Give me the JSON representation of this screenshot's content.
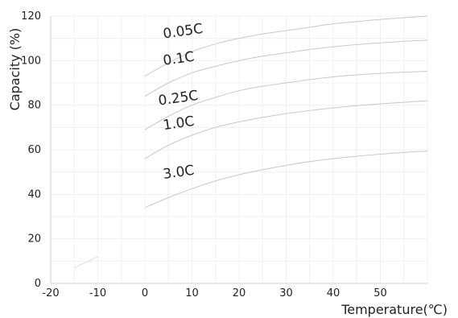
{
  "chart_data": {
    "type": "line",
    "xlabel": "Temperature(℃)",
    "ylabel": "Capacity (%)",
    "xlim": [
      -20,
      60
    ],
    "ylim": [
      0,
      120
    ],
    "x_ticks": [
      -20,
      -10,
      0,
      10,
      20,
      30,
      40,
      50
    ],
    "y_ticks": [
      0,
      20,
      40,
      60,
      80,
      100,
      120
    ],
    "grid": true,
    "line_color": "#c8c8c8",
    "series": [
      {
        "name": "0.05C",
        "label_at": [
          4,
          110
        ],
        "x": [
          0,
          5,
          10,
          15,
          20,
          25,
          30,
          35,
          40,
          45,
          50,
          55,
          60
        ],
        "y": [
          93,
          99,
          104,
          107.5,
          110,
          112,
          113.5,
          115,
          116.5,
          117.5,
          118.5,
          119.3,
          120
        ]
      },
      {
        "name": "0.1C",
        "label_at": [
          4,
          98
        ],
        "x": [
          0,
          5,
          10,
          15,
          20,
          25,
          30,
          35,
          40,
          45,
          50,
          55,
          60
        ],
        "y": [
          84,
          90,
          94.5,
          97.5,
          100,
          102,
          103.5,
          105,
          106.2,
          107.2,
          108,
          108.7,
          109.2
        ]
      },
      {
        "name": "0.25C",
        "label_at": [
          3,
          80
        ],
        "x": [
          0,
          5,
          10,
          15,
          20,
          25,
          30,
          35,
          40,
          45,
          50,
          55,
          60
        ],
        "y": [
          69,
          75,
          80,
          83.5,
          86.5,
          88.5,
          90,
          91.5,
          92.7,
          93.6,
          94.3,
          94.8,
          95.2
        ]
      },
      {
        "name": "1.0C",
        "label_at": [
          4,
          69
        ],
        "x": [
          0,
          5,
          10,
          15,
          20,
          25,
          30,
          35,
          40,
          45,
          50,
          55,
          60
        ],
        "y": [
          56,
          62,
          66.5,
          70,
          72.5,
          74.5,
          76.2,
          77.6,
          78.8,
          79.8,
          80.6,
          81.3,
          82
        ]
      },
      {
        "name": "3.0C",
        "label_at": [
          4,
          47
        ],
        "x": [
          0,
          5,
          10,
          15,
          20,
          25,
          30,
          35,
          40,
          45,
          50,
          55,
          60
        ],
        "y": [
          34,
          38.5,
          42.5,
          46,
          48.8,
          51,
          53,
          54.7,
          56,
          57.1,
          58,
          58.8,
          59.4
        ]
      }
    ],
    "extra_segment": {
      "x": [
        -15,
        -10
      ],
      "y": [
        7,
        12
      ]
    }
  }
}
